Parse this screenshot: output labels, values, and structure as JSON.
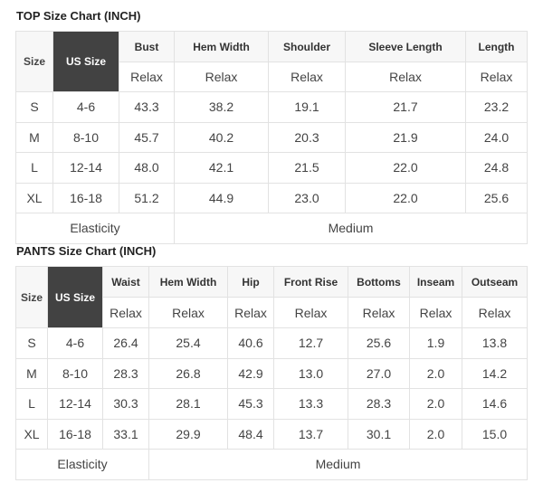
{
  "top": {
    "title": "TOP Size Chart (INCH)",
    "size_label": "Size",
    "us_size_label": "US Size",
    "columns": [
      "Bust",
      "Hem Width",
      "Shoulder",
      "Sleeve Length",
      "Length"
    ],
    "sub_label": "Relax",
    "rows": [
      {
        "size": "S",
        "us": "4-6",
        "values": [
          "43.3",
          "38.2",
          "19.1",
          "21.7",
          "23.2"
        ]
      },
      {
        "size": "M",
        "us": "8-10",
        "values": [
          "45.7",
          "40.2",
          "20.3",
          "21.9",
          "24.0"
        ]
      },
      {
        "size": "L",
        "us": "12-14",
        "values": [
          "48.0",
          "42.1",
          "21.5",
          "22.0",
          "24.8"
        ]
      },
      {
        "size": "XL",
        "us": "16-18",
        "values": [
          "51.2",
          "44.9",
          "23.0",
          "22.0",
          "25.6"
        ]
      }
    ],
    "elasticity_label": "Elasticity",
    "elasticity_value": "Medium"
  },
  "pants": {
    "title": "PANTS Size Chart (INCH)",
    "size_label": "Size",
    "us_size_label": "US Size",
    "columns": [
      "Waist",
      "Hem Width",
      "Hip",
      "Front Rise",
      "Bottoms",
      "Inseam",
      "Outseam"
    ],
    "sub_label": "Relax",
    "rows": [
      {
        "size": "S",
        "us": "4-6",
        "values": [
          "26.4",
          "25.4",
          "40.6",
          "12.7",
          "25.6",
          "1.9",
          "13.8"
        ]
      },
      {
        "size": "M",
        "us": "8-10",
        "values": [
          "28.3",
          "26.8",
          "42.9",
          "13.0",
          "27.0",
          "2.0",
          "14.2"
        ]
      },
      {
        "size": "L",
        "us": "12-14",
        "values": [
          "30.3",
          "28.1",
          "45.3",
          "13.3",
          "28.3",
          "2.0",
          "14.6"
        ]
      },
      {
        "size": "XL",
        "us": "16-18",
        "values": [
          "33.1",
          "29.9",
          "48.4",
          "13.7",
          "30.1",
          "2.0",
          "15.0"
        ]
      }
    ],
    "elasticity_label": "Elasticity",
    "elasticity_value": "Medium"
  }
}
